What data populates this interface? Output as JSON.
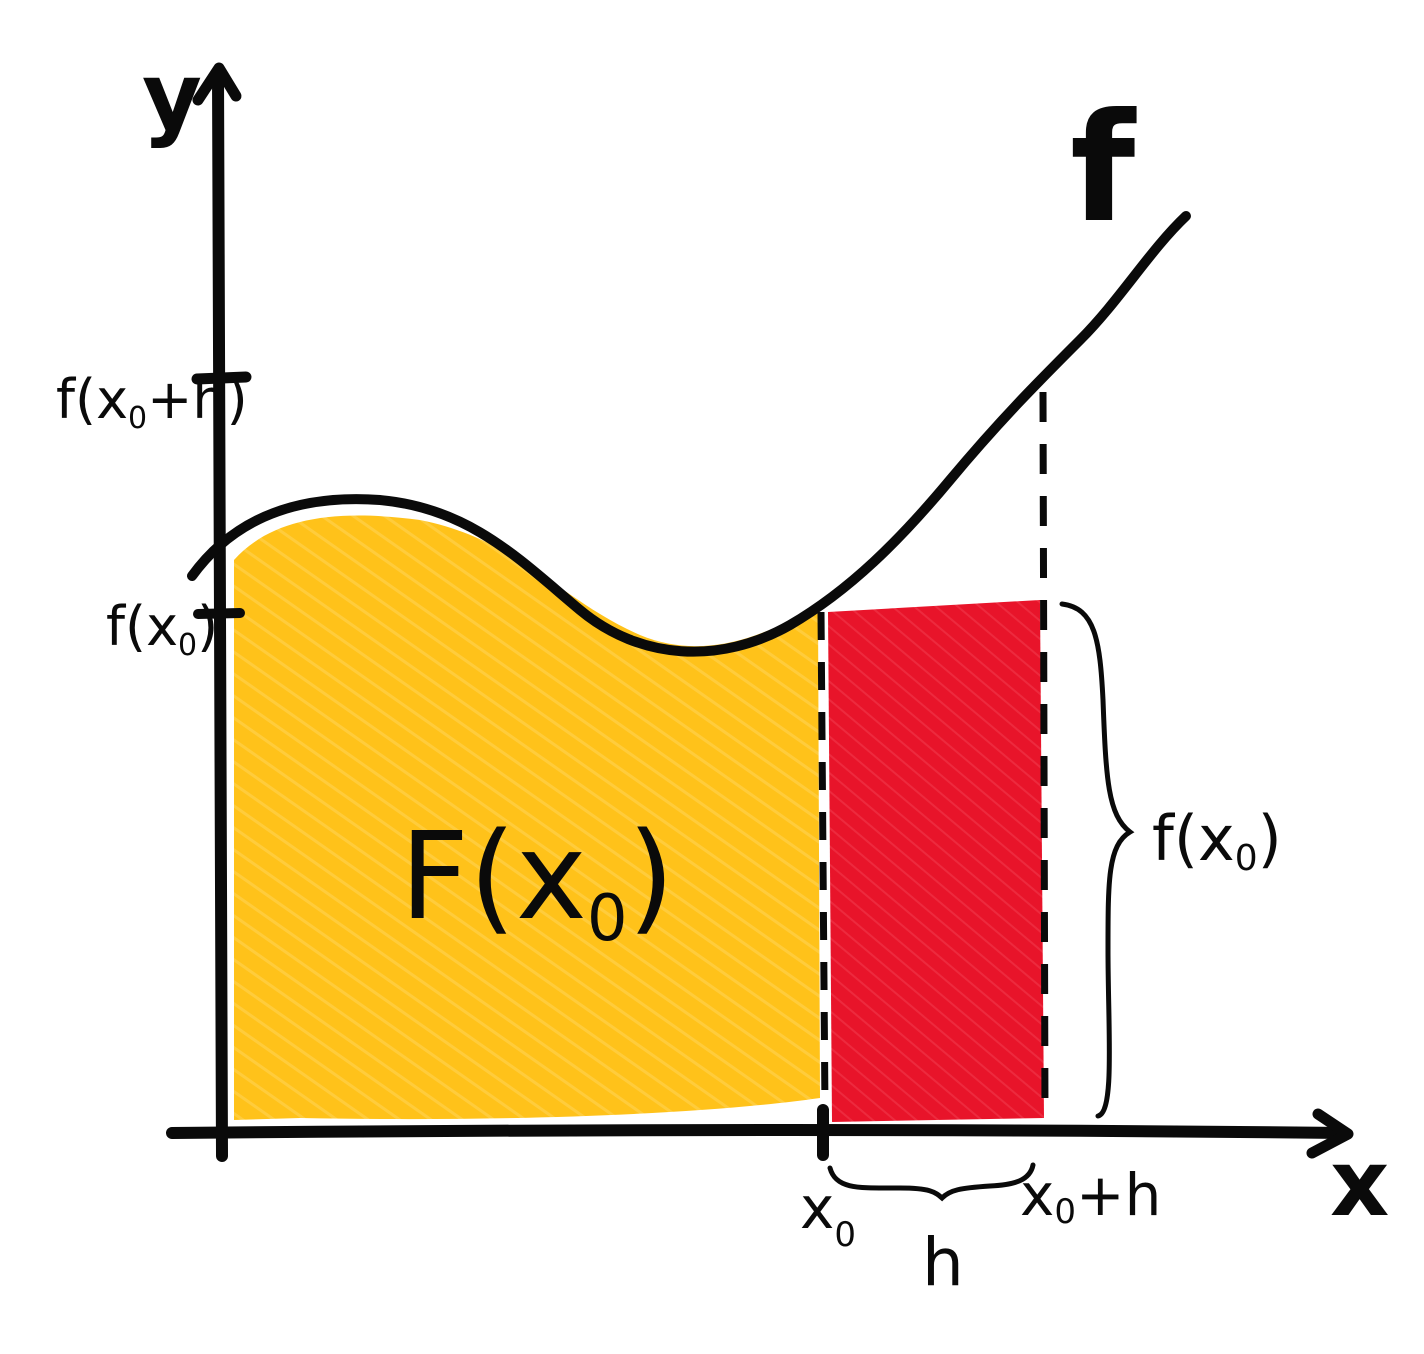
{
  "axes": {
    "y_label": "y",
    "x_label": "x"
  },
  "curve": {
    "label": "f"
  },
  "y_ticks": {
    "upper_main": "f(x",
    "upper_sub": "0",
    "upper_tail": "+h)",
    "lower_main": "f(x",
    "lower_sub": "0",
    "lower_tail": ")"
  },
  "area": {
    "label_main": "F(x",
    "label_sub": "0",
    "label_tail": ")"
  },
  "x_ticks": {
    "x0_main": "x",
    "x0_sub": "0",
    "xh_main": "x",
    "xh_sub": "0",
    "xh_tail": "+h"
  },
  "h_brace": {
    "label": "h"
  },
  "height_brace": {
    "label_main": "f(x",
    "label_sub": "0",
    "label_tail": ")"
  },
  "colors": {
    "area_fill": "#FFC21A",
    "rect_fill": "#E8142A",
    "ink": "#0a0a0a",
    "background": "#ffffff"
  }
}
